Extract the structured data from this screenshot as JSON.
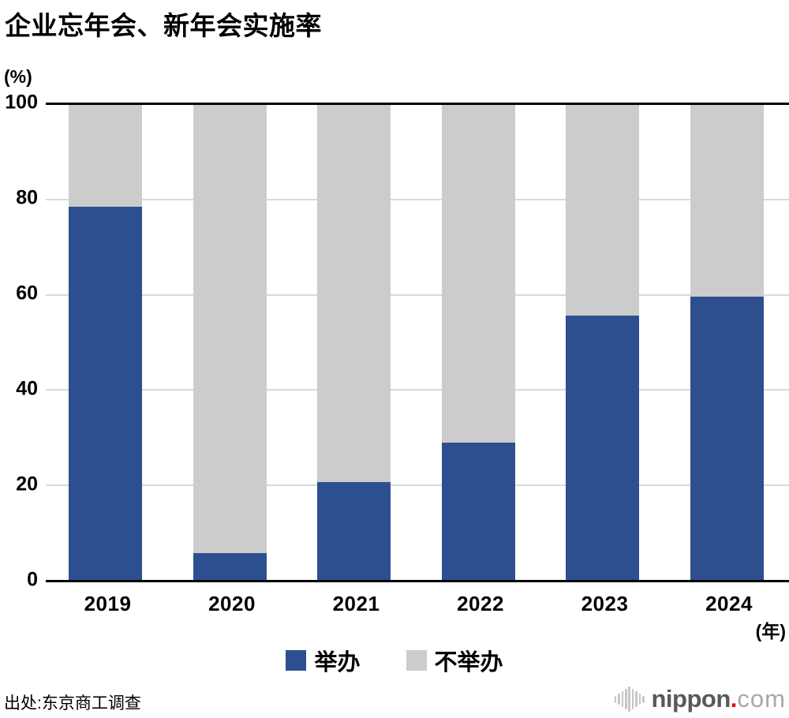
{
  "title": "企业忘年会、新年会实施率",
  "y_axis_unit": "(%)",
  "x_axis_unit": "(年)",
  "source": "出处:东京商工调查",
  "logo": {
    "name": "nippon.com",
    "text_main": "nippon",
    "text_dot": ".",
    "text_tld": "com"
  },
  "colors": {
    "held": "#2e4f8f",
    "not_held": "#cccccc",
    "gridline": "#d9d9d9",
    "axis": "#000000"
  },
  "legend": [
    {
      "label": "举办",
      "color": "#2e4f8f"
    },
    {
      "label": "不举办",
      "color": "#cccccc"
    }
  ],
  "chart_data": {
    "type": "bar",
    "stacked": true,
    "title": "企业忘年会、新年会实施率",
    "xlabel": "(年)",
    "ylabel": "(%)",
    "categories": [
      "2019",
      "2020",
      "2021",
      "2022",
      "2023",
      "2024"
    ],
    "series": [
      {
        "name": "举办",
        "color": "#2e4f8f",
        "values": [
          78.6,
          5.7,
          20.6,
          28.9,
          55.7,
          59.6
        ]
      },
      {
        "name": "不举办",
        "color": "#cccccc",
        "values": [
          21.4,
          94.3,
          79.4,
          71.1,
          44.3,
          40.4
        ]
      }
    ],
    "ylim": [
      0,
      100
    ],
    "yticks": [
      0,
      20,
      40,
      60,
      80,
      100
    ],
    "grid": true,
    "legend_position": "bottom"
  }
}
